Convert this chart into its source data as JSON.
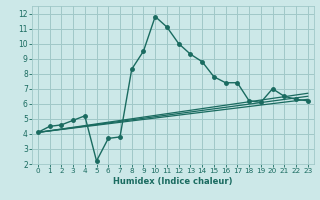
{
  "xlabel": "Humidex (Indice chaleur)",
  "ylabel": "",
  "xlim": [
    -0.5,
    23.5
  ],
  "ylim": [
    2,
    12.5
  ],
  "xticks": [
    0,
    1,
    2,
    3,
    4,
    5,
    6,
    7,
    8,
    9,
    10,
    11,
    12,
    13,
    14,
    15,
    16,
    17,
    18,
    19,
    20,
    21,
    22,
    23
  ],
  "yticks": [
    2,
    3,
    4,
    5,
    6,
    7,
    8,
    9,
    10,
    11,
    12
  ],
  "bg_color": "#cce8e8",
  "grid_color": "#a0c8c8",
  "line_color": "#1a6b60",
  "series": [
    {
      "x": [
        0,
        1,
        2,
        3,
        4,
        5,
        6,
        7,
        8,
        9,
        10,
        11,
        12,
        13,
        14,
        15,
        16,
        17,
        18,
        19,
        20,
        21,
        22,
        23
      ],
      "y": [
        4.1,
        4.5,
        4.6,
        4.9,
        5.2,
        2.2,
        3.7,
        3.8,
        8.3,
        9.5,
        11.8,
        11.1,
        10.0,
        9.3,
        8.8,
        7.8,
        7.4,
        7.4,
        6.2,
        6.1,
        7.0,
        6.5,
        6.3,
        6.2
      ],
      "marker": "o",
      "markersize": 2.5,
      "linewidth": 1.0
    },
    {
      "x": [
        0,
        23
      ],
      "y": [
        4.1,
        6.3
      ],
      "marker": null,
      "linewidth": 0.9
    },
    {
      "x": [
        0,
        23
      ],
      "y": [
        4.1,
        6.5
      ],
      "marker": null,
      "linewidth": 0.9
    },
    {
      "x": [
        0,
        23
      ],
      "y": [
        4.1,
        6.7
      ],
      "marker": null,
      "linewidth": 0.9
    }
  ]
}
